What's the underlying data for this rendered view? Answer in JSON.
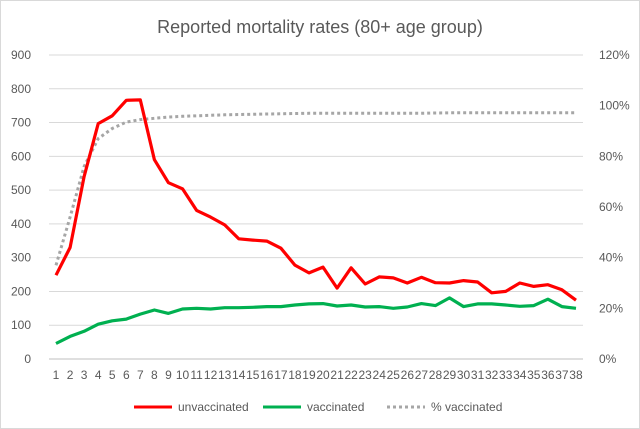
{
  "chart_data": {
    "type": "line",
    "title": "Reported mortality rates (80+ age group)",
    "xlabel": "",
    "ylabel": "",
    "categories": [
      "1",
      "2",
      "3",
      "4",
      "5",
      "6",
      "7",
      "8",
      "9",
      "10",
      "11",
      "12",
      "13",
      "14",
      "15",
      "16",
      "17",
      "18",
      "19",
      "20",
      "21",
      "22",
      "23",
      "24",
      "25",
      "26",
      "27",
      "28",
      "29",
      "30",
      "31",
      "32",
      "33",
      "34",
      "35",
      "36",
      "37",
      "38"
    ],
    "ylim": [
      0,
      900
    ],
    "yticks": [
      "0",
      "100",
      "200",
      "300",
      "400",
      "500",
      "600",
      "700",
      "800",
      "900"
    ],
    "y2lim": [
      0,
      120
    ],
    "y2ticks": [
      "0%",
      "20%",
      "40%",
      "60%",
      "80%",
      "100%",
      "120%"
    ],
    "grid": true,
    "legend_position": "bottom",
    "series": [
      {
        "name": "unvaccinated",
        "axis": "left",
        "color": "#ff0000",
        "style": "solid",
        "values": [
          248,
          330,
          540,
          697,
          720,
          766,
          767,
          590,
          522,
          504,
          440,
          420,
          397,
          356,
          352,
          349,
          328,
          278,
          255,
          272,
          210,
          270,
          222,
          243,
          240,
          225,
          242,
          226,
          225,
          232,
          228,
          196,
          200,
          225,
          215,
          220,
          205,
          174
        ]
      },
      {
        "name": "vaccinated",
        "axis": "left",
        "color": "#00b050",
        "style": "solid",
        "values": [
          46,
          67,
          82,
          103,
          113,
          118,
          133,
          145,
          135,
          148,
          150,
          148,
          152,
          152,
          153,
          155,
          155,
          160,
          163,
          164,
          157,
          160,
          154,
          155,
          150,
          154,
          164,
          158,
          181,
          155,
          163,
          163,
          160,
          156,
          158,
          177,
          155,
          150
        ]
      },
      {
        "name": "% vaccinated",
        "axis": "right",
        "color": "#a6a6a6",
        "style": "dotted",
        "values": [
          37,
          56,
          76,
          87,
          91,
          93.5,
          94.5,
          95,
          95.5,
          95.8,
          96,
          96.2,
          96.4,
          96.5,
          96.6,
          96.7,
          96.8,
          96.9,
          97,
          97,
          97,
          97,
          97,
          97,
          97,
          97,
          97,
          97.1,
          97.2,
          97.2,
          97.2,
          97.2,
          97.2,
          97.2,
          97.2,
          97.2,
          97.2,
          97.2
        ]
      }
    ]
  }
}
